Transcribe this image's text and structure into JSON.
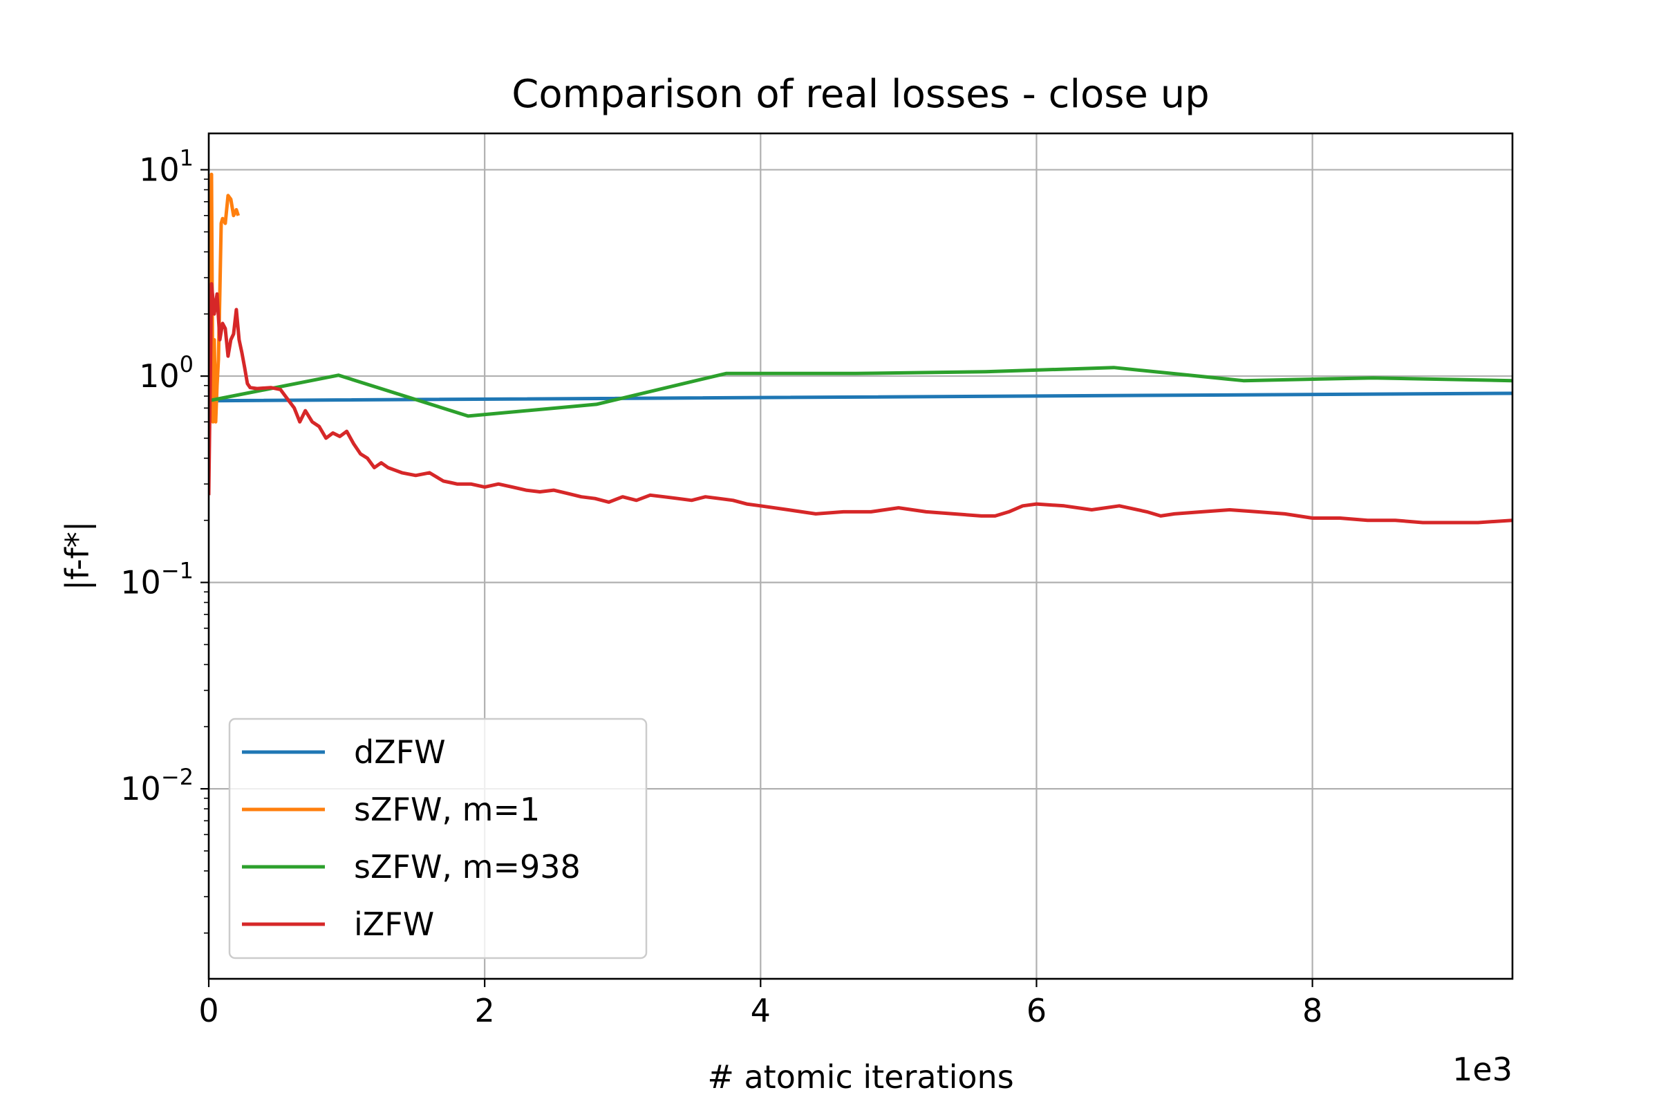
{
  "chart_data": {
    "type": "line",
    "title": "Comparison of real losses - close up",
    "xlabel": "# atomic iterations",
    "ylabel": "|f-f*|",
    "x_offset_text": "1e3",
    "x_multiplier": 1000,
    "xlim": [
      0,
      9.45
    ],
    "ylim": [
      0.0012,
      15
    ],
    "yscale": "log",
    "grid": true,
    "legend_position": "lower-left",
    "x_ticks": [
      {
        "value": 0,
        "label": "0"
      },
      {
        "value": 2,
        "label": "2"
      },
      {
        "value": 4,
        "label": "4"
      },
      {
        "value": 6,
        "label": "6"
      },
      {
        "value": 8,
        "label": "8"
      }
    ],
    "y_ticks": [
      {
        "value": 10,
        "base": "10",
        "exp": "1"
      },
      {
        "value": 1,
        "base": "10",
        "exp": "0"
      },
      {
        "value": 0.1,
        "base": "10",
        "exp": "−1"
      },
      {
        "value": 0.01,
        "base": "10",
        "exp": "−2"
      }
    ],
    "series": [
      {
        "name": "dZFW",
        "color": "#1f77b4",
        "x": [
          0,
          9.45
        ],
        "y": [
          0.76,
          0.825
        ]
      },
      {
        "name": "sZFW, m=1",
        "color": "#ff7f0e",
        "x": [
          0.0,
          0.01,
          0.02,
          0.03,
          0.04,
          0.05,
          0.06,
          0.07,
          0.08,
          0.09,
          0.1,
          0.12,
          0.14,
          0.16,
          0.18,
          0.2,
          0.21
        ],
        "y": [
          0.75,
          3.0,
          9.5,
          0.6,
          1.5,
          0.6,
          0.9,
          1.2,
          2.5,
          5.5,
          5.8,
          5.5,
          7.5,
          7.2,
          6.0,
          6.4,
          6.1
        ]
      },
      {
        "name": "sZFW, m=938",
        "color": "#2ca02c",
        "x": [
          0,
          0.94,
          1.88,
          2.81,
          3.75,
          4.69,
          5.63,
          6.56,
          7.5,
          8.44,
          9.45
        ],
        "y": [
          0.76,
          1.01,
          0.64,
          0.73,
          1.03,
          1.03,
          1.05,
          1.1,
          0.95,
          0.98,
          0.95
        ]
      },
      {
        "name": "iZFW",
        "color": "#d62728",
        "x": [
          0.0,
          0.02,
          0.04,
          0.06,
          0.08,
          0.1,
          0.12,
          0.14,
          0.16,
          0.18,
          0.2,
          0.22,
          0.24,
          0.26,
          0.28,
          0.3,
          0.35,
          0.45,
          0.52,
          0.58,
          0.62,
          0.66,
          0.7,
          0.75,
          0.8,
          0.85,
          0.9,
          0.95,
          1.0,
          1.05,
          1.1,
          1.15,
          1.2,
          1.25,
          1.3,
          1.35,
          1.4,
          1.5,
          1.6,
          1.7,
          1.75,
          1.8,
          1.9,
          2.0,
          2.1,
          2.2,
          2.3,
          2.4,
          2.5,
          2.6,
          2.7,
          2.8,
          2.9,
          3.0,
          3.1,
          3.2,
          3.3,
          3.4,
          3.5,
          3.6,
          3.7,
          3.8,
          3.9,
          4.0,
          4.2,
          4.4,
          4.6,
          4.8,
          5.0,
          5.2,
          5.4,
          5.6,
          5.7,
          5.8,
          5.9,
          6.0,
          6.2,
          6.4,
          6.6,
          6.8,
          6.9,
          7.0,
          7.2,
          7.4,
          7.6,
          7.8,
          8.0,
          8.2,
          8.4,
          8.6,
          8.8,
          9.0,
          9.2,
          9.45
        ],
        "y": [
          0.27,
          2.8,
          2.0,
          2.5,
          1.5,
          1.8,
          1.7,
          1.25,
          1.5,
          1.6,
          2.1,
          1.5,
          1.3,
          1.1,
          0.92,
          0.88,
          0.87,
          0.88,
          0.86,
          0.76,
          0.7,
          0.6,
          0.68,
          0.6,
          0.57,
          0.5,
          0.53,
          0.51,
          0.54,
          0.47,
          0.42,
          0.4,
          0.36,
          0.38,
          0.36,
          0.35,
          0.34,
          0.33,
          0.34,
          0.31,
          0.305,
          0.3,
          0.3,
          0.29,
          0.3,
          0.29,
          0.28,
          0.275,
          0.28,
          0.27,
          0.26,
          0.255,
          0.245,
          0.26,
          0.25,
          0.265,
          0.26,
          0.255,
          0.25,
          0.26,
          0.255,
          0.25,
          0.24,
          0.235,
          0.225,
          0.215,
          0.22,
          0.22,
          0.23,
          0.22,
          0.215,
          0.21,
          0.21,
          0.22,
          0.235,
          0.24,
          0.235,
          0.225,
          0.235,
          0.22,
          0.21,
          0.215,
          0.22,
          0.225,
          0.22,
          0.215,
          0.205,
          0.205,
          0.2,
          0.2,
          0.195,
          0.195,
          0.195,
          0.2
        ]
      }
    ]
  }
}
